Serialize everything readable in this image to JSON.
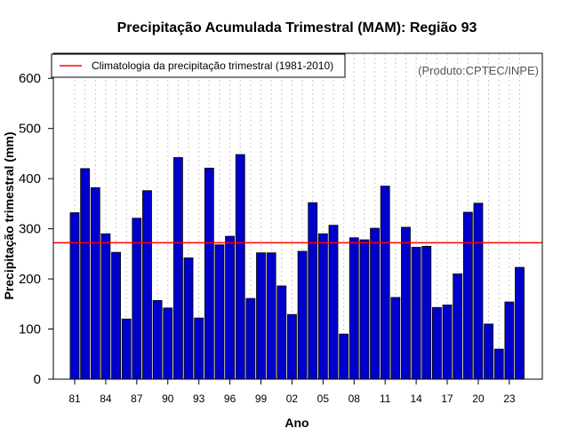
{
  "chart_data": {
    "type": "bar",
    "title": "Precipitação Acumulada Trimestral (MAM): Região 93",
    "xlabel": "Ano",
    "ylabel": "Precipitação trimestral (mm)",
    "ylim": [
      0,
      650
    ],
    "yticks": [
      0,
      100,
      200,
      300,
      400,
      500,
      600
    ],
    "source": "(Produto:CPTEC/INPE)",
    "bar_color": "#0000cc",
    "climatology": {
      "label": "Climatologia da precipitação trimestral (1981-2010)",
      "value": 272,
      "color": "#ff0000"
    },
    "legend_position": "top-left",
    "grid": "vertical dotted",
    "years": [
      1981,
      1982,
      1983,
      1984,
      1985,
      1986,
      1987,
      1988,
      1989,
      1990,
      1991,
      1992,
      1993,
      1994,
      1995,
      1996,
      1997,
      1998,
      1999,
      2000,
      2001,
      2002,
      2003,
      2004,
      2005,
      2006,
      2007,
      2008,
      2009,
      2010,
      2011,
      2012,
      2013,
      2014,
      2015,
      2016,
      2017,
      2018,
      2019,
      2020,
      2021,
      2022,
      2023,
      2024
    ],
    "xtick_labels": [
      "81",
      "84",
      "87",
      "90",
      "93",
      "96",
      "99",
      "02",
      "05",
      "08",
      "11",
      "14",
      "17",
      "20",
      "23"
    ],
    "xtick_years": [
      1981,
      1984,
      1987,
      1990,
      1993,
      1996,
      1999,
      2002,
      2005,
      2008,
      2011,
      2014,
      2017,
      2020,
      2023
    ],
    "values": [
      332,
      420,
      382,
      290,
      253,
      120,
      321,
      376,
      157,
      142,
      442,
      242,
      122,
      421,
      268,
      285,
      448,
      161,
      252,
      252,
      186,
      129,
      255,
      352,
      290,
      307,
      90,
      282,
      278,
      301,
      385,
      163,
      303,
      263,
      265,
      143,
      148,
      210,
      333,
      351,
      110,
      60,
      154,
      223
    ]
  }
}
